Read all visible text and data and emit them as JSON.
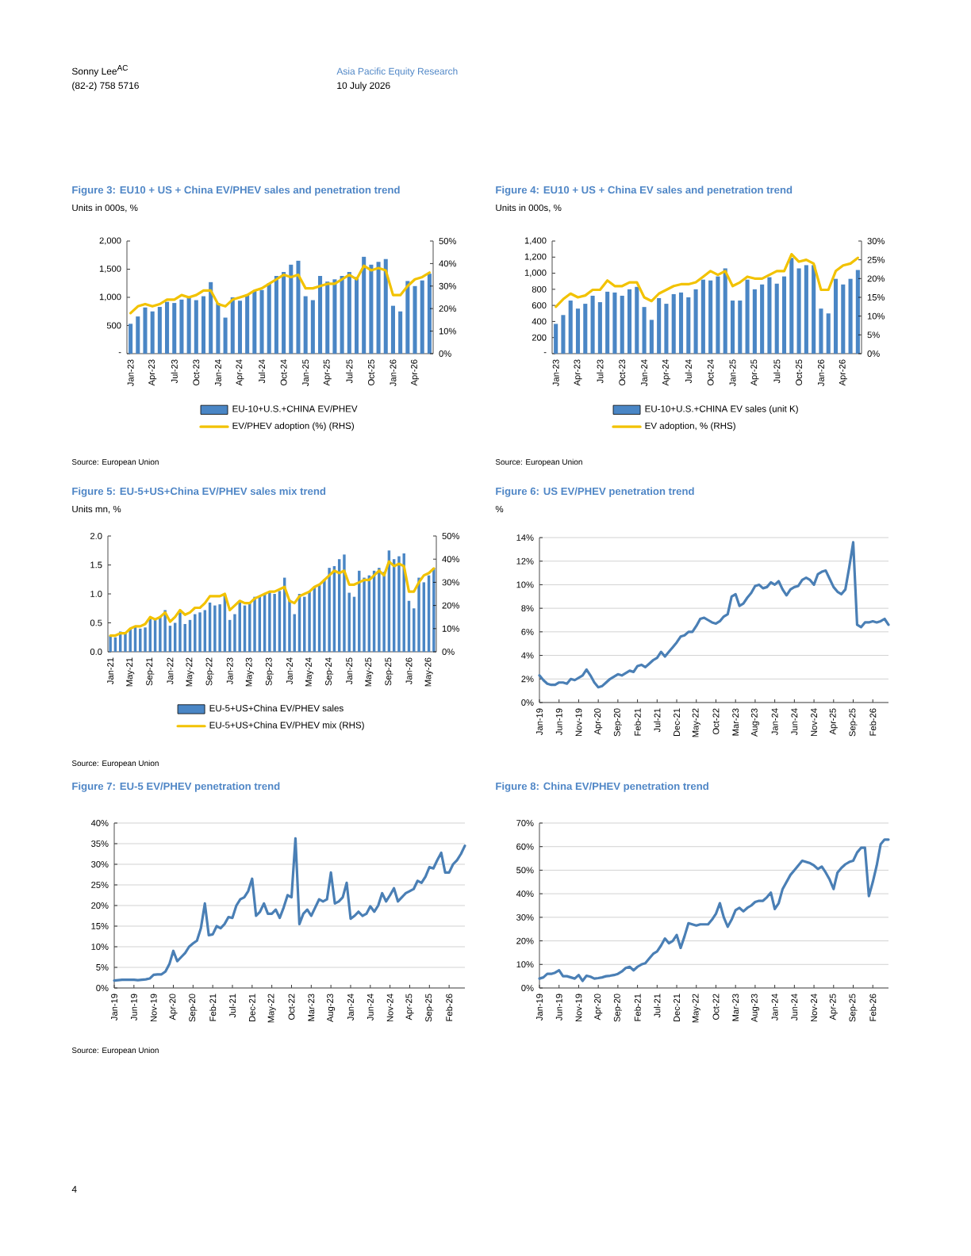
{
  "chart_data": [
    {
      "type": "other",
      "annotations": [
        "Sonny Lee$^{AC}$",
        "(82-2) 758 5716",
        "Asia Pacific Equity Research",
        "10 July 2026",
        "4"
      ]
    },
    {
      "type": "bar",
      "title": "Figure 3: EU10 + US + China EV/PHEV sales and penetration trend",
      "subtitle": "Units in 000s, %",
      "categories": [
        "Jan-23",
        null,
        null,
        "Apr-23",
        null,
        null,
        "Jul-23",
        null,
        null,
        "Oct-23",
        null,
        null,
        "Jan-24",
        null,
        null,
        "Apr-24",
        null,
        null,
        "Jul-24",
        null,
        null,
        "Oct-24",
        null,
        null,
        "Jan-25",
        null,
        null,
        "Apr-25",
        null,
        null,
        "Jul-25",
        null,
        null,
        "Oct-25",
        null,
        null,
        "Jan-26",
        null,
        null,
        "Apr-26",
        null,
        null
      ],
      "series": [
        {
          "name": "EU-10+U.S.+CHINA EV/PHEV",
          "color": "#4a86c5",
          "values": [
            530,
            660,
            820,
            750,
            830,
            920,
            900,
            960,
            1000,
            950,
            1020,
            1270,
            900,
            640,
            1000,
            940,
            1050,
            1120,
            1130,
            1250,
            1380,
            1450,
            1580,
            1650,
            1020,
            950,
            1380,
            1280,
            1320,
            1380,
            1450,
            1360,
            1720,
            1580,
            1630,
            1680,
            850,
            750,
            1290,
            1200,
            1300,
            1420
          ]
        },
        {
          "name": "EV/PHEV adoption (%) (RHS)",
          "type": "line",
          "axis": "y2",
          "color": "#f2c200",
          "values": [
            18,
            21,
            22,
            21,
            22,
            24,
            24,
            26,
            25,
            26,
            28,
            28,
            22,
            21,
            24,
            25,
            26,
            28,
            29,
            31,
            33,
            35,
            34,
            35,
            29,
            29,
            30,
            31,
            31,
            33,
            35,
            33,
            39,
            37,
            38,
            37,
            26,
            26,
            30,
            33,
            34,
            36
          ]
        }
      ],
      "ylim": [
        0,
        2000
      ],
      "yticks": [
        {
          "value": 0,
          "label": "-"
        },
        500,
        {
          "value": 1000,
          "label": "1,000"
        },
        {
          "value": 1500,
          "label": "1,500"
        },
        {
          "value": 2000,
          "label": "2,000"
        }
      ],
      "y2lim": [
        0,
        50
      ],
      "y2ticks": [
        {
          "value": 0,
          "label": "0%"
        },
        {
          "value": 10,
          "label": "10%"
        },
        {
          "value": 20,
          "label": "20%"
        },
        {
          "value": 30,
          "label": "30%"
        },
        {
          "value": 40,
          "label": "40%"
        },
        {
          "value": 50,
          "label": "50%"
        }
      ],
      "legend": "bottom",
      "annotations": [
        "Source: European Union"
      ]
    },
    {
      "type": "bar",
      "title": "Figure 4: EU10 + US + China EV sales and penetration trend",
      "subtitle": "Units in 000s, %",
      "categories": [
        "Jan-23",
        null,
        null,
        "Apr-23",
        null,
        null,
        "Jul-23",
        null,
        null,
        "Oct-23",
        null,
        null,
        "Jan-24",
        null,
        null,
        "Apr-24",
        null,
        null,
        "Jul-24",
        null,
        null,
        "Oct-24",
        null,
        null,
        "Jan-25",
        null,
        null,
        "Apr-25",
        null,
        null,
        "Jul-25",
        null,
        null,
        "Oct-25",
        null,
        null,
        "Jan-26",
        null,
        null,
        "Apr-26",
        null,
        null
      ],
      "series": [
        {
          "name": "EU-10+U.S.+CHINA EV sales (unit K)",
          "color": "#4a86c5",
          "values": [
            370,
            480,
            660,
            560,
            620,
            720,
            640,
            770,
            760,
            720,
            800,
            830,
            580,
            420,
            690,
            620,
            740,
            760,
            700,
            800,
            920,
            910,
            960,
            1060,
            660,
            660,
            920,
            800,
            860,
            950,
            870,
            960,
            1190,
            1060,
            1100,
            1100,
            560,
            500,
            930,
            860,
            930,
            1040
          ]
        },
        {
          "name": "EV adoption, % (RHS)",
          "type": "line",
          "axis": "y2",
          "color": "#f2c200",
          "values": [
            12.5,
            14.5,
            16,
            15,
            15.5,
            17,
            17,
            19.5,
            18,
            18,
            19,
            19,
            15,
            14,
            16,
            17,
            18,
            18.5,
            18.5,
            19,
            20.5,
            22,
            21,
            22,
            18,
            19,
            20.5,
            20,
            20,
            21,
            22,
            22,
            26.5,
            24.5,
            25,
            24,
            17,
            17,
            22,
            23.5,
            24,
            25.5
          ]
        }
      ],
      "ylim": [
        0,
        1400
      ],
      "yticks": [
        {
          "value": 0,
          "label": "-"
        },
        200,
        400,
        600,
        800,
        {
          "value": 1000,
          "label": "1,000"
        },
        {
          "value": 1200,
          "label": "1,200"
        },
        {
          "value": 1400,
          "label": "1,400"
        }
      ],
      "y2lim": [
        0,
        30
      ],
      "y2ticks": [
        {
          "value": 0,
          "label": "0%"
        },
        {
          "value": 5,
          "label": "5%"
        },
        {
          "value": 10,
          "label": "10%"
        },
        {
          "value": 15,
          "label": "15%"
        },
        {
          "value": 20,
          "label": "20%"
        },
        {
          "value": 25,
          "label": "25%"
        },
        {
          "value": 30,
          "label": "30%"
        }
      ],
      "legend": "bottom",
      "annotations": [
        "Source: European Union"
      ]
    },
    {
      "type": "bar",
      "title": "Figure 5: EU-5+US+China EV/PHEV sales mix trend",
      "subtitle": "Units mn, %",
      "categories": [
        "Jan-21",
        null,
        null,
        null,
        "May-21",
        null,
        null,
        null,
        "Sep-21",
        null,
        null,
        null,
        "Jan-22",
        null,
        null,
        null,
        "May-22",
        null,
        null,
        null,
        "Sep-22",
        null,
        null,
        null,
        "Jan-23",
        null,
        null,
        null,
        "May-23",
        null,
        null,
        null,
        "Sep-23",
        null,
        null,
        null,
        "Jan-24",
        null,
        null,
        null,
        "May-24",
        null,
        null,
        null,
        "Sep-24",
        null,
        null,
        null,
        "Jan-25",
        null,
        null,
        null,
        "May-25",
        null,
        null,
        null,
        "Sep-25",
        null,
        null,
        null,
        "Jan-26",
        null,
        null,
        null,
        "May-26",
        null
      ],
      "series": [
        {
          "name": "EU-5+US+China EV/PHEV sales",
          "color": "#4a86c5",
          "values": [
            0.28,
            0.25,
            0.35,
            0.33,
            0.4,
            0.45,
            0.4,
            0.42,
            0.58,
            0.55,
            0.6,
            0.72,
            0.45,
            0.5,
            0.68,
            0.48,
            0.55,
            0.65,
            0.68,
            0.72,
            0.85,
            0.8,
            0.82,
            1.0,
            0.55,
            0.65,
            0.85,
            0.8,
            0.85,
            0.95,
            0.95,
            1.0,
            1.05,
            1.0,
            1.05,
            1.28,
            0.9,
            0.65,
            1.0,
            0.95,
            1.05,
            1.12,
            1.15,
            1.25,
            1.45,
            1.48,
            1.6,
            1.68,
            1.02,
            0.95,
            1.4,
            1.28,
            1.32,
            1.4,
            1.45,
            1.38,
            1.75,
            1.6,
            1.65,
            1.7,
            0.88,
            0.75,
            1.28,
            1.2,
            1.32,
            1.45
          ]
        },
        {
          "name": "EU-5+US+China EV/PHEV mix (RHS)",
          "type": "line",
          "axis": "y2",
          "color": "#f2c200",
          "values": [
            7,
            7,
            8,
            8,
            10,
            11,
            11,
            12,
            15,
            14,
            15,
            17,
            13,
            15,
            18,
            16,
            17,
            19,
            19,
            21,
            24,
            24,
            24,
            25,
            18,
            20,
            22,
            21,
            21,
            23,
            24,
            25,
            26,
            26,
            27,
            28,
            22,
            21,
            24,
            25,
            26,
            28,
            29,
            31,
            33,
            35,
            34,
            35,
            29,
            29,
            30,
            31,
            31,
            33,
            35,
            33,
            39,
            37,
            38,
            37,
            26,
            26,
            30,
            33,
            34,
            36
          ]
        }
      ],
      "ylim": [
        0,
        2
      ],
      "yticks": [
        {
          "value": 0,
          "label": "0.0"
        },
        0.5,
        {
          "value": 1,
          "label": "1.0"
        },
        1.5,
        {
          "value": 2,
          "label": "2.0"
        }
      ],
      "y2lim": [
        0,
        50
      ],
      "y2ticks": [
        {
          "value": 0,
          "label": "0%"
        },
        {
          "value": 10,
          "label": "10%"
        },
        {
          "value": 20,
          "label": "20%"
        },
        {
          "value": 30,
          "label": "30%"
        },
        {
          "value": 40,
          "label": "40%"
        },
        {
          "value": 50,
          "label": "50%"
        }
      ],
      "legend": "bottom",
      "annotations": [
        "Source: European Union"
      ]
    },
    {
      "type": "line",
      "title": "Figure 6: US EV/PHEV penetration trend",
      "subtitle": "%",
      "categories": [
        "Jan-19",
        null,
        null,
        null,
        null,
        "Jun-19",
        null,
        null,
        null,
        null,
        "Nov-19",
        null,
        null,
        null,
        null,
        "Apr-20",
        null,
        null,
        null,
        null,
        "Sep-20",
        null,
        null,
        null,
        null,
        "Feb-21",
        null,
        null,
        null,
        null,
        "Jul-21",
        null,
        null,
        null,
        null,
        "Dec-21",
        null,
        null,
        null,
        null,
        "May-22",
        null,
        null,
        null,
        null,
        "Oct-22",
        null,
        null,
        null,
        null,
        "Mar-23",
        null,
        null,
        null,
        null,
        "Aug-23",
        null,
        null,
        null,
        null,
        "Jan-24",
        null,
        null,
        null,
        null,
        "Jun-24",
        null,
        null,
        null,
        null,
        "Nov-24",
        null,
        null,
        null,
        null,
        "Apr-25",
        null,
        null,
        null,
        null,
        "Sep-25",
        null,
        null,
        null,
        null,
        "Feb-26",
        null,
        null,
        null,
        null
      ],
      "color": "#4a7fb5",
      "values": [
        2.3,
        1.9,
        1.6,
        1.5,
        1.5,
        1.7,
        1.7,
        1.6,
        2.0,
        1.9,
        2.1,
        2.3,
        2.8,
        2.3,
        1.7,
        1.3,
        1.4,
        1.7,
        2.0,
        2.2,
        2.4,
        2.3,
        2.5,
        2.7,
        2.6,
        3.1,
        3.2,
        3.0,
        3.3,
        3.6,
        3.8,
        4.3,
        3.9,
        4.3,
        4.7,
        5.1,
        5.6,
        5.7,
        6.0,
        6.0,
        6.5,
        7.1,
        7.2,
        7.0,
        6.8,
        6.7,
        6.9,
        7.3,
        7.5,
        9.0,
        9.2,
        8.2,
        8.4,
        8.9,
        9.3,
        9.9,
        10.0,
        9.7,
        9.8,
        10.2,
        10.0,
        10.3,
        9.6,
        9.1,
        9.6,
        9.8,
        9.9,
        10.4,
        10.6,
        10.4,
        10.0,
        10.9,
        11.1,
        11.2,
        10.5,
        9.8,
        9.4,
        9.2,
        9.6,
        11.5,
        13.6,
        6.6,
        6.4,
        6.8,
        6.8,
        6.9,
        6.8,
        6.9,
        7.1,
        6.6
      ],
      "ylim": [
        0,
        14
      ],
      "yticks": [
        {
          "value": 0,
          "label": "0%"
        },
        {
          "value": 2,
          "label": "2%"
        },
        {
          "value": 4,
          "label": "4%"
        },
        {
          "value": 6,
          "label": "6%"
        },
        {
          "value": 8,
          "label": "8%"
        },
        {
          "value": 10,
          "label": "10%"
        },
        {
          "value": 12,
          "label": "12%"
        },
        {
          "value": 14,
          "label": "14%"
        }
      ],
      "grid": "y"
    },
    {
      "type": "line",
      "title": "Figure 7: EU-5 EV/PHEV penetration trend",
      "categories": [
        "Jan-19",
        null,
        null,
        null,
        null,
        "Jun-19",
        null,
        null,
        null,
        null,
        "Nov-19",
        null,
        null,
        null,
        null,
        "Apr-20",
        null,
        null,
        null,
        null,
        "Sep-20",
        null,
        null,
        null,
        null,
        "Feb-21",
        null,
        null,
        null,
        null,
        "Jul-21",
        null,
        null,
        null,
        null,
        "Dec-21",
        null,
        null,
        null,
        null,
        "May-22",
        null,
        null,
        null,
        null,
        "Oct-22",
        null,
        null,
        null,
        null,
        "Mar-23",
        null,
        null,
        null,
        null,
        "Aug-23",
        null,
        null,
        null,
        null,
        "Jan-24",
        null,
        null,
        null,
        null,
        "Jun-24",
        null,
        null,
        null,
        null,
        "Nov-24",
        null,
        null,
        null,
        null,
        "Apr-25",
        null,
        null,
        null,
        null,
        "Sep-25",
        null,
        null,
        null,
        null,
        "Feb-26",
        null,
        null,
        null,
        null
      ],
      "color": "#4a7fb5",
      "values": [
        1.8,
        1.9,
        2.0,
        2.0,
        2.0,
        2.0,
        1.9,
        2.0,
        2.1,
        2.3,
        3.2,
        3.3,
        3.3,
        4.0,
        5.8,
        9.0,
        6.5,
        7.5,
        8.5,
        10.0,
        10.8,
        11.5,
        14.5,
        20.5,
        12.8,
        13.0,
        15.0,
        14.5,
        15.5,
        17.2,
        17.0,
        20.0,
        21.5,
        22.0,
        23.5,
        26.5,
        17.5,
        18.5,
        20.5,
        18.0,
        18.0,
        19.0,
        17.0,
        19.5,
        22.5,
        22.0,
        36.3,
        15.5,
        18.0,
        19.0,
        17.5,
        19.5,
        21.5,
        21.0,
        21.5,
        28.0,
        20.5,
        21.0,
        22.0,
        25.5,
        16.8,
        17.5,
        18.5,
        17.5,
        18.0,
        19.8,
        18.5,
        20.0,
        23.0,
        21.0,
        22.5,
        24.2,
        21.0,
        22.0,
        23.0,
        23.5,
        24.0,
        26.0,
        25.5,
        27.0,
        29.3,
        29.0,
        31.0,
        32.8,
        28.0,
        28.0,
        30.0,
        31.0,
        32.5,
        34.5
      ],
      "ylim": [
        0,
        40
      ],
      "yticks": [
        {
          "value": 0,
          "label": "0%"
        },
        {
          "value": 5,
          "label": "5%"
        },
        {
          "value": 10,
          "label": "10%"
        },
        {
          "value": 15,
          "label": "15%"
        },
        {
          "value": 20,
          "label": "20%"
        },
        {
          "value": 25,
          "label": "25%"
        },
        {
          "value": 30,
          "label": "30%"
        },
        {
          "value": 35,
          "label": "35%"
        },
        {
          "value": 40,
          "label": "40%"
        }
      ],
      "grid": "y",
      "annotations": [
        "Source: European Union"
      ]
    },
    {
      "type": "line",
      "title": "Figure 8: China EV/PHEV penetration trend",
      "categories": [
        "Jan-19",
        null,
        null,
        null,
        null,
        "Jun-19",
        null,
        null,
        null,
        null,
        "Nov-19",
        null,
        null,
        null,
        null,
        "Apr-20",
        null,
        null,
        null,
        null,
        "Sep-20",
        null,
        null,
        null,
        null,
        "Feb-21",
        null,
        null,
        null,
        null,
        "Jul-21",
        null,
        null,
        null,
        null,
        "Dec-21",
        null,
        null,
        null,
        null,
        "May-22",
        null,
        null,
        null,
        null,
        "Oct-22",
        null,
        null,
        null,
        null,
        "Mar-23",
        null,
        null,
        null,
        null,
        "Aug-23",
        null,
        null,
        null,
        null,
        "Jan-24",
        null,
        null,
        null,
        null,
        "Jun-24",
        null,
        null,
        null,
        null,
        "Nov-24",
        null,
        null,
        null,
        null,
        "Apr-25",
        null,
        null,
        null,
        null,
        "Sep-25",
        null,
        null,
        null,
        null,
        "Feb-26",
        null,
        null,
        null,
        null
      ],
      "color": "#4a7fb5",
      "values": [
        4,
        4.5,
        6,
        6,
        6.5,
        7.5,
        5,
        5,
        4.5,
        4,
        5.5,
        3,
        5.2,
        4.8,
        4,
        4.2,
        4.5,
        5,
        5.2,
        5.5,
        6,
        7,
        8.5,
        9,
        7.5,
        9,
        10,
        10.5,
        12.5,
        14.5,
        15.5,
        18,
        21,
        19,
        20,
        22.5,
        17,
        22,
        27.5,
        27,
        26.5,
        27,
        27,
        27,
        29,
        31.5,
        36,
        30,
        26,
        29,
        33,
        34,
        32.5,
        34,
        35,
        36.5,
        37,
        37,
        38.5,
        40.5,
        33.5,
        36,
        42,
        45,
        48,
        50,
        52,
        54,
        53.5,
        53,
        52,
        50.5,
        51.5,
        49,
        46,
        42,
        49,
        51,
        52.5,
        53.5,
        54,
        57.5,
        59.5,
        59.5,
        39,
        45,
        52,
        61,
        63,
        63
      ],
      "ylim": [
        0,
        70
      ],
      "yticks": [
        {
          "value": 0,
          "label": "0%"
        },
        {
          "value": 10,
          "label": "10%"
        },
        {
          "value": 20,
          "label": "20%"
        },
        {
          "value": 30,
          "label": "30%"
        },
        {
          "value": 40,
          "label": "40%"
        },
        {
          "value": 50,
          "label": "50%"
        },
        {
          "value": 60,
          "label": "60%"
        },
        {
          "value": 70,
          "label": "70%"
        }
      ],
      "grid": "y"
    }
  ]
}
